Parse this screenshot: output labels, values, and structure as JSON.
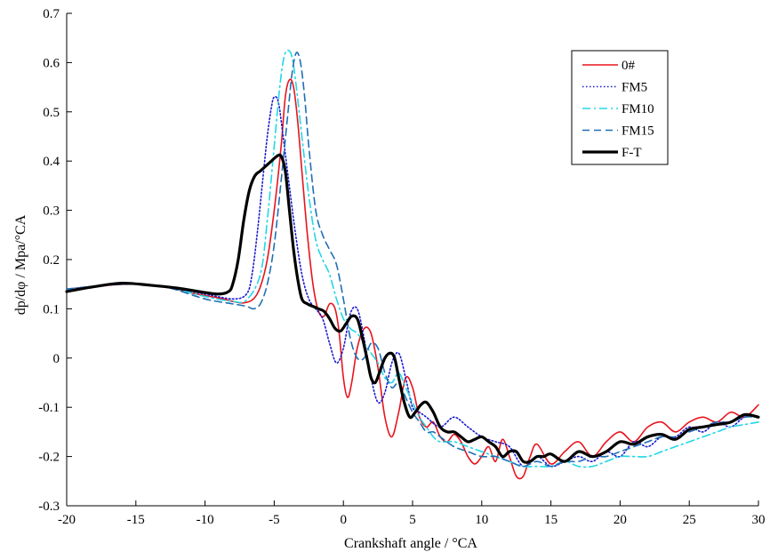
{
  "chart_data": {
    "type": "line",
    "title": "",
    "xlabel": "Crankshaft angle / °CA",
    "ylabel": "dp/dφ / Mpa/°CA",
    "xlim": [
      -20,
      30
    ],
    "ylim": [
      -0.3,
      0.7
    ],
    "xticks": [
      -20,
      -15,
      -10,
      -5,
      0,
      5,
      10,
      15,
      20,
      25,
      30
    ],
    "yticks": [
      -0.3,
      -0.2,
      -0.1,
      0,
      0.1,
      0.2,
      0.3,
      0.4,
      0.5,
      0.6,
      0.7
    ],
    "xtick_labels": [
      "-20",
      "-15",
      "-10",
      "-5",
      "0",
      "5",
      "10",
      "15",
      "20",
      "25",
      "30"
    ],
    "ytick_labels": [
      "-0.3",
      "-0.2",
      "-0.1",
      "0",
      "0.1",
      "0.2",
      "0.3",
      "0.4",
      "0.5",
      "0.6",
      "0.7"
    ],
    "grid": false,
    "legend_position": "top-right",
    "series": [
      {
        "name": "0#",
        "color": "#e8141e",
        "style": "solid",
        "x": [
          -20,
          -17,
          -15,
          -13,
          -11,
          -9,
          -8,
          -7.2,
          -6.5,
          -6,
          -5.5,
          -5,
          -4.5,
          -4.2,
          -3.9,
          -3.6,
          -3.3,
          -3,
          -2.6,
          -2.2,
          -1.8,
          -1.4,
          -1,
          -0.6,
          -0.3,
          0,
          0.3,
          0.6,
          1,
          1.5,
          2,
          2.5,
          3,
          3.5,
          4,
          4.5,
          5,
          5.5,
          6,
          6.5,
          7,
          7.5,
          8,
          8.5,
          9,
          9.5,
          10,
          10.5,
          11,
          11.5,
          12,
          12.5,
          13,
          13.5,
          14,
          15,
          16,
          17,
          18,
          19,
          20,
          21,
          22,
          23,
          24,
          25,
          26,
          27,
          28,
          29,
          30
        ],
        "y": [
          0.14,
          0.148,
          0.15,
          0.145,
          0.132,
          0.122,
          0.115,
          0.112,
          0.12,
          0.145,
          0.2,
          0.3,
          0.43,
          0.53,
          0.565,
          0.55,
          0.48,
          0.38,
          0.25,
          0.15,
          0.095,
          0.085,
          0.11,
          0.1,
          0.05,
          -0.04,
          -0.08,
          -0.05,
          0.02,
          0.06,
          0.05,
          -0.02,
          -0.12,
          -0.16,
          -0.11,
          -0.04,
          -0.06,
          -0.12,
          -0.14,
          -0.13,
          -0.16,
          -0.17,
          -0.155,
          -0.17,
          -0.2,
          -0.215,
          -0.2,
          -0.18,
          -0.21,
          -0.165,
          -0.2,
          -0.24,
          -0.24,
          -0.2,
          -0.175,
          -0.215,
          -0.19,
          -0.17,
          -0.2,
          -0.17,
          -0.15,
          -0.17,
          -0.14,
          -0.13,
          -0.15,
          -0.13,
          -0.12,
          -0.13,
          -0.11,
          -0.12,
          -0.095
        ]
      },
      {
        "name": "FM5",
        "color": "#1a1ad0",
        "style": "dotted",
        "x": [
          -20,
          -16,
          -13,
          -10,
          -8,
          -7,
          -6.6,
          -6.2,
          -5.8,
          -5.5,
          -5.2,
          -5,
          -4.7,
          -4.4,
          -4,
          -3.5,
          -3,
          -2.5,
          -2,
          -1.5,
          -1,
          -0.5,
          0,
          0.5,
          1,
          1.5,
          2,
          2.5,
          3,
          3.5,
          4,
          4.5,
          5,
          5.5,
          6,
          7,
          8,
          9,
          10,
          11,
          12,
          13,
          14,
          15,
          16,
          17,
          18,
          19,
          20,
          21,
          22,
          23,
          24,
          25,
          26,
          27,
          28,
          29,
          30
        ],
        "y": [
          0.14,
          0.15,
          0.145,
          0.13,
          0.12,
          0.13,
          0.17,
          0.26,
          0.37,
          0.45,
          0.51,
          0.53,
          0.52,
          0.46,
          0.37,
          0.26,
          0.17,
          0.12,
          0.1,
          0.08,
          0.03,
          -0.01,
          0.02,
          0.09,
          0.1,
          0.04,
          -0.04,
          -0.09,
          -0.07,
          -0.01,
          0.01,
          -0.04,
          -0.1,
          -0.11,
          -0.12,
          -0.14,
          -0.12,
          -0.14,
          -0.16,
          -0.17,
          -0.18,
          -0.22,
          -0.2,
          -0.22,
          -0.21,
          -0.2,
          -0.21,
          -0.19,
          -0.2,
          -0.17,
          -0.18,
          -0.16,
          -0.16,
          -0.14,
          -0.15,
          -0.13,
          -0.14,
          -0.12,
          -0.12
        ]
      },
      {
        "name": "FM10",
        "color": "#22d7e8",
        "style": "dashdot",
        "x": [
          -20,
          -16,
          -13,
          -10,
          -8,
          -7,
          -6,
          -5.5,
          -5,
          -4.6,
          -4.3,
          -4,
          -3.7,
          -3.4,
          -3,
          -2.5,
          -2,
          -1.5,
          -1,
          -0.5,
          0,
          0.5,
          1,
          1.5,
          2,
          2.5,
          3,
          3.5,
          4,
          4.5,
          5,
          5.5,
          6,
          6.5,
          7,
          8,
          9,
          10,
          11,
          12,
          13,
          14,
          15,
          16,
          17,
          18,
          19,
          20,
          21,
          22,
          23,
          24,
          25,
          26,
          27,
          28,
          29,
          30
        ],
        "y": [
          0.14,
          0.15,
          0.145,
          0.125,
          0.115,
          0.118,
          0.17,
          0.28,
          0.43,
          0.55,
          0.61,
          0.625,
          0.61,
          0.55,
          0.45,
          0.33,
          0.24,
          0.2,
          0.17,
          0.12,
          0.08,
          0.06,
          0.05,
          0.03,
          0.01,
          -0.01,
          -0.04,
          -0.05,
          -0.03,
          -0.06,
          -0.09,
          -0.12,
          -0.14,
          -0.16,
          -0.17,
          -0.17,
          -0.18,
          -0.19,
          -0.2,
          -0.21,
          -0.22,
          -0.22,
          -0.22,
          -0.21,
          -0.22,
          -0.22,
          -0.21,
          -0.2,
          -0.2,
          -0.2,
          -0.19,
          -0.18,
          -0.17,
          -0.16,
          -0.15,
          -0.14,
          -0.135,
          -0.13
        ]
      },
      {
        "name": "FM15",
        "color": "#1f6fb5",
        "style": "dashed",
        "x": [
          -20,
          -16,
          -13,
          -10,
          -8,
          -7,
          -6.5,
          -6,
          -5.5,
          -5,
          -4.5,
          -4,
          -3.7,
          -3.4,
          -3.1,
          -2.8,
          -2.5,
          -2,
          -1.5,
          -1,
          -0.5,
          0,
          0.5,
          1,
          1.5,
          2,
          2.5,
          3,
          3.5,
          4,
          4.5,
          5,
          5.5,
          6,
          6.5,
          7,
          8,
          9,
          10,
          11,
          12,
          13,
          14,
          15,
          16,
          17,
          18,
          19,
          20,
          21,
          22,
          23,
          24,
          25,
          26,
          27,
          28,
          29,
          30
        ],
        "y": [
          0.14,
          0.15,
          0.145,
          0.12,
          0.11,
          0.105,
          0.1,
          0.11,
          0.15,
          0.23,
          0.36,
          0.5,
          0.58,
          0.62,
          0.6,
          0.53,
          0.43,
          0.3,
          0.25,
          0.22,
          0.19,
          0.12,
          0.04,
          0.0,
          0.0,
          0.03,
          0.02,
          -0.03,
          -0.06,
          -0.05,
          -0.08,
          -0.11,
          -0.13,
          -0.15,
          -0.15,
          -0.16,
          -0.18,
          -0.19,
          -0.2,
          -0.2,
          -0.21,
          -0.22,
          -0.21,
          -0.22,
          -0.21,
          -0.21,
          -0.2,
          -0.2,
          -0.19,
          -0.18,
          -0.17,
          -0.16,
          -0.16,
          -0.15,
          -0.14,
          -0.13,
          -0.13,
          -0.12,
          -0.12
        ]
      },
      {
        "name": "F-T",
        "color": "#000000",
        "style": "solid-thick",
        "x": [
          -20,
          -18,
          -16,
          -14,
          -12,
          -10,
          -9,
          -8.3,
          -8,
          -7.6,
          -7.2,
          -6.8,
          -6.4,
          -6,
          -5.6,
          -5.2,
          -4.8,
          -4.5,
          -4.2,
          -3.9,
          -3.6,
          -3.3,
          -3,
          -2.6,
          -2.2,
          -1.8,
          -1.4,
          -1,
          -0.6,
          -0.2,
          0.2,
          0.6,
          1,
          1.3,
          1.7,
          2,
          2.3,
          2.6,
          3,
          3.4,
          3.7,
          4,
          4.4,
          4.8,
          5.2,
          5.6,
          6,
          6.5,
          7,
          7.5,
          8,
          8.5,
          9,
          9.5,
          10,
          10.5,
          11,
          11.5,
          12,
          12.5,
          13,
          13.5,
          14,
          14.5,
          15,
          16,
          17,
          18,
          19,
          20,
          21,
          22,
          23,
          24,
          25,
          26,
          27,
          28,
          29,
          30
        ],
        "y": [
          0.135,
          0.145,
          0.152,
          0.148,
          0.142,
          0.133,
          0.13,
          0.135,
          0.15,
          0.2,
          0.28,
          0.34,
          0.37,
          0.38,
          0.39,
          0.4,
          0.41,
          0.41,
          0.38,
          0.3,
          0.22,
          0.16,
          0.12,
          0.11,
          0.105,
          0.1,
          0.095,
          0.08,
          0.06,
          0.055,
          0.07,
          0.085,
          0.08,
          0.05,
          0.0,
          -0.04,
          -0.05,
          -0.03,
          0.0,
          0.01,
          0.0,
          -0.04,
          -0.09,
          -0.12,
          -0.11,
          -0.095,
          -0.09,
          -0.11,
          -0.14,
          -0.15,
          -0.15,
          -0.16,
          -0.17,
          -0.165,
          -0.16,
          -0.17,
          -0.18,
          -0.2,
          -0.19,
          -0.19,
          -0.21,
          -0.21,
          -0.2,
          -0.2,
          -0.195,
          -0.21,
          -0.19,
          -0.2,
          -0.19,
          -0.17,
          -0.175,
          -0.16,
          -0.155,
          -0.165,
          -0.145,
          -0.14,
          -0.135,
          -0.13,
          -0.115,
          -0.12
        ]
      }
    ]
  }
}
